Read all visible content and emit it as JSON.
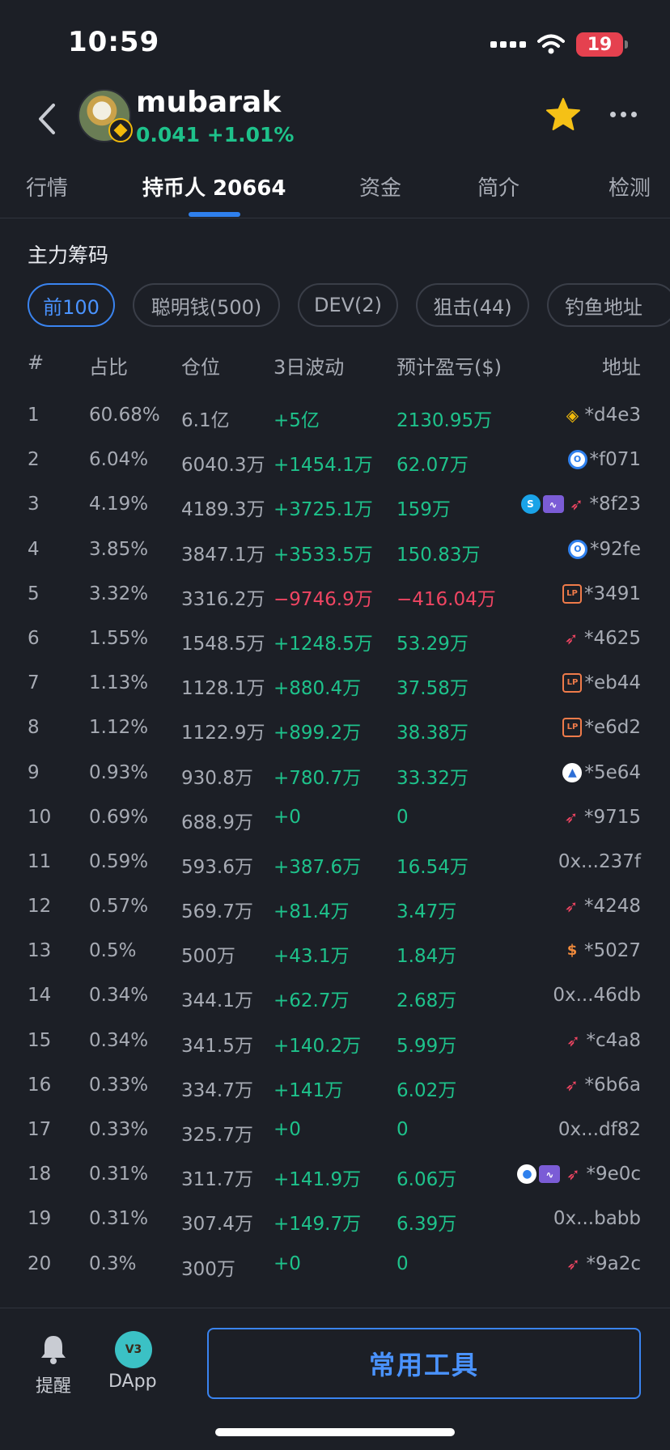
{
  "status": {
    "time": "10:59",
    "battery": "19"
  },
  "header": {
    "token_name": "mubarak",
    "price_line": "0.041 +1.01%",
    "accent_green": "#1ec28b",
    "accent_red": "#ef4562",
    "accent_blue": "#3a84f0"
  },
  "tabs": [
    {
      "label": "行情"
    },
    {
      "label": "持币人 20664"
    },
    {
      "label": "资金"
    },
    {
      "label": "简介"
    },
    {
      "label": "检测"
    }
  ],
  "section_title": "主力筹码",
  "chips": [
    {
      "label": "前100"
    },
    {
      "label": "聪明钱(500)"
    },
    {
      "label": "DEV(2)"
    },
    {
      "label": "狙击(44)"
    },
    {
      "label": "钓鱼地址"
    }
  ],
  "table": {
    "headers": {
      "rank": "#",
      "pct": "占比",
      "pos": "仓位",
      "chg": "3日波动",
      "pnl": "预计盈亏($)",
      "addr": "地址"
    },
    "rows": [
      {
        "rank": "1",
        "pct": "60.68%",
        "pos": "6.1亿",
        "chg": "+5亿",
        "pnl": "2130.95万",
        "addr": "*d4e3",
        "tags": [
          "bnb"
        ]
      },
      {
        "rank": "2",
        "pct": "6.04%",
        "pos": "6040.3万",
        "chg": "+1454.1万",
        "pnl": "62.07万",
        "addr": "*f071",
        "tags": [
          "o"
        ]
      },
      {
        "rank": "3",
        "pct": "4.19%",
        "pos": "4189.3万",
        "chg": "+3725.1万",
        "pnl": "159万",
        "addr": "*8f23",
        "tags": [
          "swap",
          "wave",
          "rocket"
        ]
      },
      {
        "rank": "4",
        "pct": "3.85%",
        "pos": "3847.1万",
        "chg": "+3533.5万",
        "pnl": "150.83万",
        "addr": "*92fe",
        "tags": [
          "o"
        ]
      },
      {
        "rank": "5",
        "pct": "3.32%",
        "pos": "3316.2万",
        "chg": "−9746.9万",
        "pnl": "−416.04万",
        "addr": "*3491",
        "tags": [
          "lp"
        ],
        "negative": true
      },
      {
        "rank": "6",
        "pct": "1.55%",
        "pos": "1548.5万",
        "chg": "+1248.5万",
        "pnl": "53.29万",
        "addr": "*4625",
        "tags": [
          "rocket"
        ]
      },
      {
        "rank": "7",
        "pct": "1.13%",
        "pos": "1128.1万",
        "chg": "+880.4万",
        "pnl": "37.58万",
        "addr": "*eb44",
        "tags": [
          "lp"
        ]
      },
      {
        "rank": "8",
        "pct": "1.12%",
        "pos": "1122.9万",
        "chg": "+899.2万",
        "pnl": "38.38万",
        "addr": "*e6d2",
        "tags": [
          "lp"
        ]
      },
      {
        "rank": "9",
        "pct": "0.93%",
        "pos": "930.8万",
        "chg": "+780.7万",
        "pnl": "33.32万",
        "addr": "*5e64",
        "tags": [
          "mtn"
        ]
      },
      {
        "rank": "10",
        "pct": "0.69%",
        "pos": "688.9万",
        "chg": "+0",
        "pnl": "0",
        "addr": "*9715",
        "tags": [
          "rocket"
        ]
      },
      {
        "rank": "11",
        "pct": "0.59%",
        "pos": "593.6万",
        "chg": "+387.6万",
        "pnl": "16.54万",
        "addr": "0x...237f",
        "tags": []
      },
      {
        "rank": "12",
        "pct": "0.57%",
        "pos": "569.7万",
        "chg": "+81.4万",
        "pnl": "3.47万",
        "addr": "*4248",
        "tags": [
          "rocket"
        ]
      },
      {
        "rank": "13",
        "pct": "0.5%",
        "pos": "500万",
        "chg": "+43.1万",
        "pnl": "1.84万",
        "addr": "*5027",
        "tags": [
          "bag"
        ]
      },
      {
        "rank": "14",
        "pct": "0.34%",
        "pos": "344.1万",
        "chg": "+62.7万",
        "pnl": "2.68万",
        "addr": "0x...46db",
        "tags": []
      },
      {
        "rank": "15",
        "pct": "0.34%",
        "pos": "341.5万",
        "chg": "+140.2万",
        "pnl": "5.99万",
        "addr": "*c4a8",
        "tags": [
          "rocket"
        ]
      },
      {
        "rank": "16",
        "pct": "0.33%",
        "pos": "334.7万",
        "chg": "+141万",
        "pnl": "6.02万",
        "addr": "*6b6a",
        "tags": [
          "rocket"
        ]
      },
      {
        "rank": "17",
        "pct": "0.33%",
        "pos": "325.7万",
        "chg": "+0",
        "pnl": "0",
        "addr": "0x...df82",
        "tags": []
      },
      {
        "rank": "18",
        "pct": "0.31%",
        "pos": "311.7万",
        "chg": "+141.9万",
        "pnl": "6.06万",
        "addr": "*9e0c",
        "tags": [
          "drop",
          "wave",
          "rocket"
        ]
      },
      {
        "rank": "19",
        "pct": "0.31%",
        "pos": "307.4万",
        "chg": "+149.7万",
        "pnl": "6.39万",
        "addr": "0x...babb",
        "tags": []
      },
      {
        "rank": "20",
        "pct": "0.3%",
        "pos": "300万",
        "chg": "+0",
        "pnl": "0",
        "addr": "*9a2c",
        "tags": [
          "rocket"
        ]
      }
    ]
  },
  "bottom": {
    "remind_label": "提醒",
    "dapp_label": "DApp",
    "dapp_badge": "V3",
    "tools_label": "常用工具"
  }
}
